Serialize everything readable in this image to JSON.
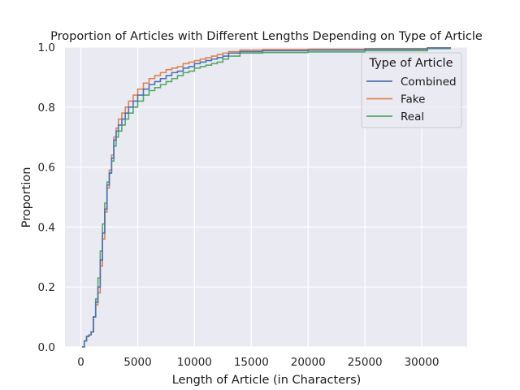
{
  "chart_data": {
    "type": "line",
    "subtype": "ecdf-step",
    "title": "Proportion of Articles with Different Lengths Depending on Type of Article",
    "xlabel": "Length of Article (in Characters)",
    "ylabel": "Proportion",
    "xlim": [
      -1400,
      34000
    ],
    "ylim": [
      0,
      1.0
    ],
    "xticks": [
      0,
      5000,
      10000,
      15000,
      20000,
      25000,
      30000
    ],
    "yticks": [
      0.0,
      0.2,
      0.4,
      0.6,
      0.8,
      1.0
    ],
    "xtick_labels": [
      "0",
      "5000",
      "10000",
      "15000",
      "20000",
      "25000",
      "30000"
    ],
    "ytick_labels": [
      "0.0",
      "0.2",
      "0.4",
      "0.6",
      "0.8",
      "1.0"
    ],
    "grid": true,
    "legend": {
      "title": "Type of Article",
      "placement": "top-right"
    },
    "series": [
      {
        "name": "Combined",
        "color": "#4c72b0",
        "x": [
          100,
          300,
          500,
          700,
          900,
          1100,
          1300,
          1500,
          1700,
          1900,
          2100,
          2300,
          2500,
          2700,
          2900,
          3100,
          3300,
          3600,
          3900,
          4200,
          4600,
          5000,
          5500,
          6000,
          6500,
          7000,
          7500,
          8000,
          8500,
          9000,
          9500,
          10000,
          10500,
          11000,
          11500,
          12000,
          12500,
          13000,
          14000,
          16000,
          20000,
          25000,
          30500,
          32500
        ],
        "y": [
          0.0,
          0.02,
          0.035,
          0.04,
          0.05,
          0.1,
          0.15,
          0.2,
          0.29,
          0.38,
          0.46,
          0.54,
          0.58,
          0.63,
          0.69,
          0.72,
          0.74,
          0.76,
          0.78,
          0.8,
          0.82,
          0.84,
          0.86,
          0.875,
          0.885,
          0.895,
          0.905,
          0.915,
          0.92,
          0.93,
          0.935,
          0.945,
          0.95,
          0.955,
          0.96,
          0.965,
          0.97,
          0.98,
          0.985,
          0.988,
          0.99,
          0.993,
          0.997,
          1.0
        ]
      },
      {
        "name": "Fake",
        "color": "#dd8452",
        "x": [
          100,
          300,
          500,
          700,
          900,
          1100,
          1300,
          1500,
          1700,
          1900,
          2100,
          2300,
          2500,
          2700,
          2900,
          3100,
          3300,
          3600,
          3900,
          4200,
          4600,
          5000,
          5500,
          6000,
          6500,
          7000,
          7500,
          8000,
          8500,
          9000,
          9500,
          10000,
          10500,
          11000,
          11500,
          12000,
          12500,
          13000,
          14000,
          16000,
          20000,
          25000,
          30500,
          32500
        ],
        "y": [
          0.0,
          0.02,
          0.035,
          0.04,
          0.05,
          0.1,
          0.14,
          0.18,
          0.27,
          0.36,
          0.45,
          0.53,
          0.59,
          0.64,
          0.7,
          0.73,
          0.76,
          0.78,
          0.8,
          0.82,
          0.84,
          0.86,
          0.88,
          0.895,
          0.905,
          0.915,
          0.925,
          0.93,
          0.935,
          0.945,
          0.95,
          0.955,
          0.96,
          0.965,
          0.97,
          0.975,
          0.98,
          0.985,
          0.99,
          0.992,
          0.993,
          0.995,
          0.998,
          1.0
        ]
      },
      {
        "name": "Real",
        "color": "#55a868",
        "x": [
          100,
          300,
          500,
          700,
          900,
          1100,
          1300,
          1500,
          1700,
          1900,
          2100,
          2300,
          2500,
          2700,
          2900,
          3100,
          3300,
          3600,
          3900,
          4200,
          4600,
          5000,
          5500,
          6000,
          6500,
          7000,
          7500,
          8000,
          8500,
          9000,
          9500,
          10000,
          10500,
          11000,
          11500,
          12000,
          12500,
          13000,
          14000,
          16000,
          20000,
          25000,
          30500,
          32500
        ],
        "y": [
          0.0,
          0.02,
          0.035,
          0.04,
          0.05,
          0.1,
          0.16,
          0.23,
          0.32,
          0.41,
          0.48,
          0.55,
          0.58,
          0.62,
          0.67,
          0.7,
          0.72,
          0.74,
          0.76,
          0.78,
          0.8,
          0.82,
          0.84,
          0.855,
          0.865,
          0.875,
          0.885,
          0.895,
          0.905,
          0.915,
          0.92,
          0.93,
          0.935,
          0.94,
          0.945,
          0.95,
          0.96,
          0.97,
          0.98,
          0.982,
          0.984,
          0.988,
          0.995,
          1.0
        ]
      }
    ]
  }
}
